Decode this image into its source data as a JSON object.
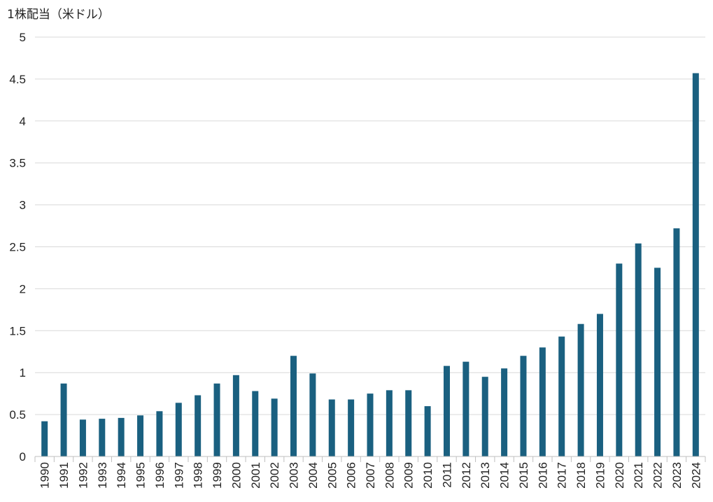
{
  "chart_data": {
    "type": "bar",
    "ylabel": "1株配当（米ドル）",
    "xlabel": "",
    "ylim": [
      0,
      5
    ],
    "yticks": [
      "0",
      "0.5",
      "1",
      "1.5",
      "2",
      "2.5",
      "3",
      "3.5",
      "4",
      "4.5",
      "5"
    ],
    "grid": true,
    "bar_color": "#1a6080",
    "categories": [
      "1990",
      "1991",
      "1992",
      "1993",
      "1994",
      "1995",
      "1996",
      "1997",
      "1998",
      "1999",
      "2000",
      "2001",
      "2002",
      "2003",
      "2004",
      "2005",
      "2006",
      "2007",
      "2008",
      "2009",
      "2010",
      "2011",
      "2012",
      "2013",
      "2014",
      "2015",
      "2016",
      "2017",
      "2018",
      "2019",
      "2020",
      "2021",
      "2022",
      "2023",
      "2024"
    ],
    "values": [
      0.42,
      0.87,
      0.44,
      0.45,
      0.46,
      0.49,
      0.54,
      0.64,
      0.73,
      0.87,
      0.97,
      0.78,
      0.69,
      1.2,
      0.99,
      0.68,
      0.68,
      0.75,
      0.79,
      0.79,
      0.6,
      1.08,
      1.13,
      0.95,
      1.05,
      1.2,
      1.3,
      1.43,
      1.58,
      1.7,
      2.3,
      2.54,
      2.25,
      2.72,
      4.57
    ]
  }
}
